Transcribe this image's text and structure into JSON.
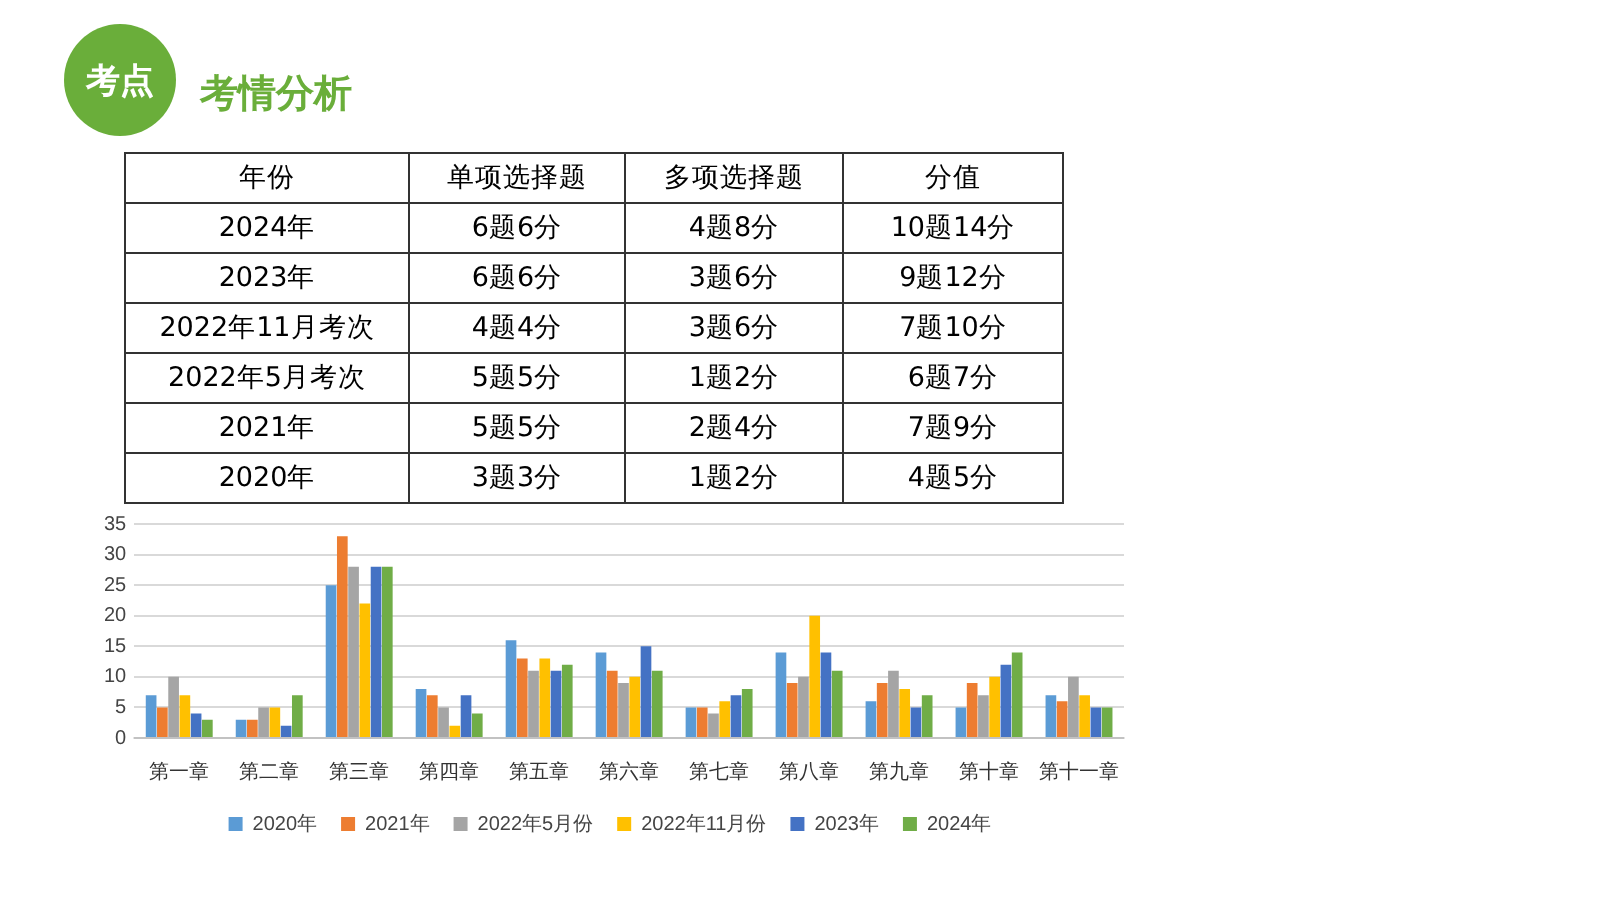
{
  "chart_data": {
    "type": "bar",
    "title": "考情分析",
    "subtitle": "考点",
    "annotations": [
      "年份",
      "单项选择题",
      "多项选择题",
      "分值",
      "2024年",
      "6题6分",
      "4题8分",
      "10题14分",
      "2023年",
      "6题6分",
      "3题6分",
      "9题12分",
      "2022年11月考次",
      "4题4分",
      "3题6分",
      "7题10分",
      "2022年5月考次",
      "5题5分",
      "1题2分",
      "6题7分",
      "2021年",
      "5题5分",
      "2题4分",
      "7题9分",
      "2020年",
      "3题3分",
      "1题2分",
      "4题5分"
    ],
    "categories": [
      "第一章",
      "第二章",
      "第三章",
      "第四章",
      "第五章",
      "第六章",
      "第七章",
      "第八章",
      "第九章",
      "第十章",
      "第十一章"
    ],
    "series": [
      {
        "name": "2020年",
        "color": "#5b9bd5",
        "values": [
          7,
          3,
          25,
          8,
          16,
          14,
          5,
          14,
          6,
          5,
          7
        ]
      },
      {
        "name": "2021年",
        "color": "#ed7d31",
        "values": [
          5,
          3,
          33,
          7,
          13,
          11,
          5,
          9,
          9,
          9,
          6
        ]
      },
      {
        "name": "2022年5月份",
        "color": "#a5a5a5",
        "values": [
          10,
          5,
          28,
          5,
          11,
          9,
          4,
          10,
          11,
          7,
          10
        ]
      },
      {
        "name": "2022年11月份",
        "color": "#ffc000",
        "values": [
          7,
          5,
          22,
          2,
          13,
          10,
          6,
          20,
          8,
          10,
          7
        ]
      },
      {
        "name": "2023年",
        "color": "#4472c4",
        "values": [
          4,
          2,
          28,
          7,
          11,
          15,
          7,
          14,
          5,
          12,
          5
        ]
      },
      {
        "name": "2024年",
        "color": "#70ad47",
        "values": [
          3,
          7,
          28,
          4,
          12,
          11,
          8,
          11,
          7,
          14,
          5
        ]
      }
    ],
    "ylim": [
      0,
      35
    ],
    "yticks": [
      0,
      5,
      10,
      15,
      20,
      25,
      30,
      35
    ],
    "grid": "y",
    "legend": "bottom"
  }
}
